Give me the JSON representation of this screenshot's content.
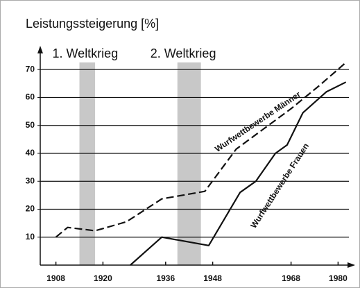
{
  "chart_data": {
    "type": "line",
    "title": "Leistungssteigerung [%]",
    "xlim": [
      1904,
      1984
    ],
    "xticks": [
      1908,
      1920,
      1936,
      1948,
      1968,
      1980
    ],
    "ylim": [
      0,
      78
    ],
    "yticks": [
      10,
      20,
      30,
      40,
      50,
      60,
      70
    ],
    "grid": true,
    "periods": [
      {
        "label": "1. Weltkrieg",
        "start": 1914,
        "end": 1918
      },
      {
        "label": "2. Weltkrieg",
        "start": 1939,
        "end": 1945
      }
    ],
    "period_color": "#c8c8c8",
    "series": [
      {
        "name": "Wurfwettbewerbe Männer",
        "color": "#111111",
        "dashed": true,
        "x": [
          1908,
          1911,
          1918,
          1926,
          1935,
          1946,
          1954,
          1968,
          1975,
          1982
        ],
        "values": [
          10,
          13.5,
          12.3,
          15.5,
          23.7,
          26.4,
          41.5,
          56,
          64,
          72.5
        ]
      },
      {
        "name": "Wurfwettbewerbe Frauen",
        "color": "#111111",
        "dashed": false,
        "x": [
          1927,
          1935,
          1947,
          1955,
          1959,
          1964,
          1967,
          1971,
          1977,
          1982
        ],
        "values": [
          0,
          10,
          7,
          26,
          30,
          40,
          43,
          54.5,
          62,
          65.5
        ]
      }
    ]
  }
}
